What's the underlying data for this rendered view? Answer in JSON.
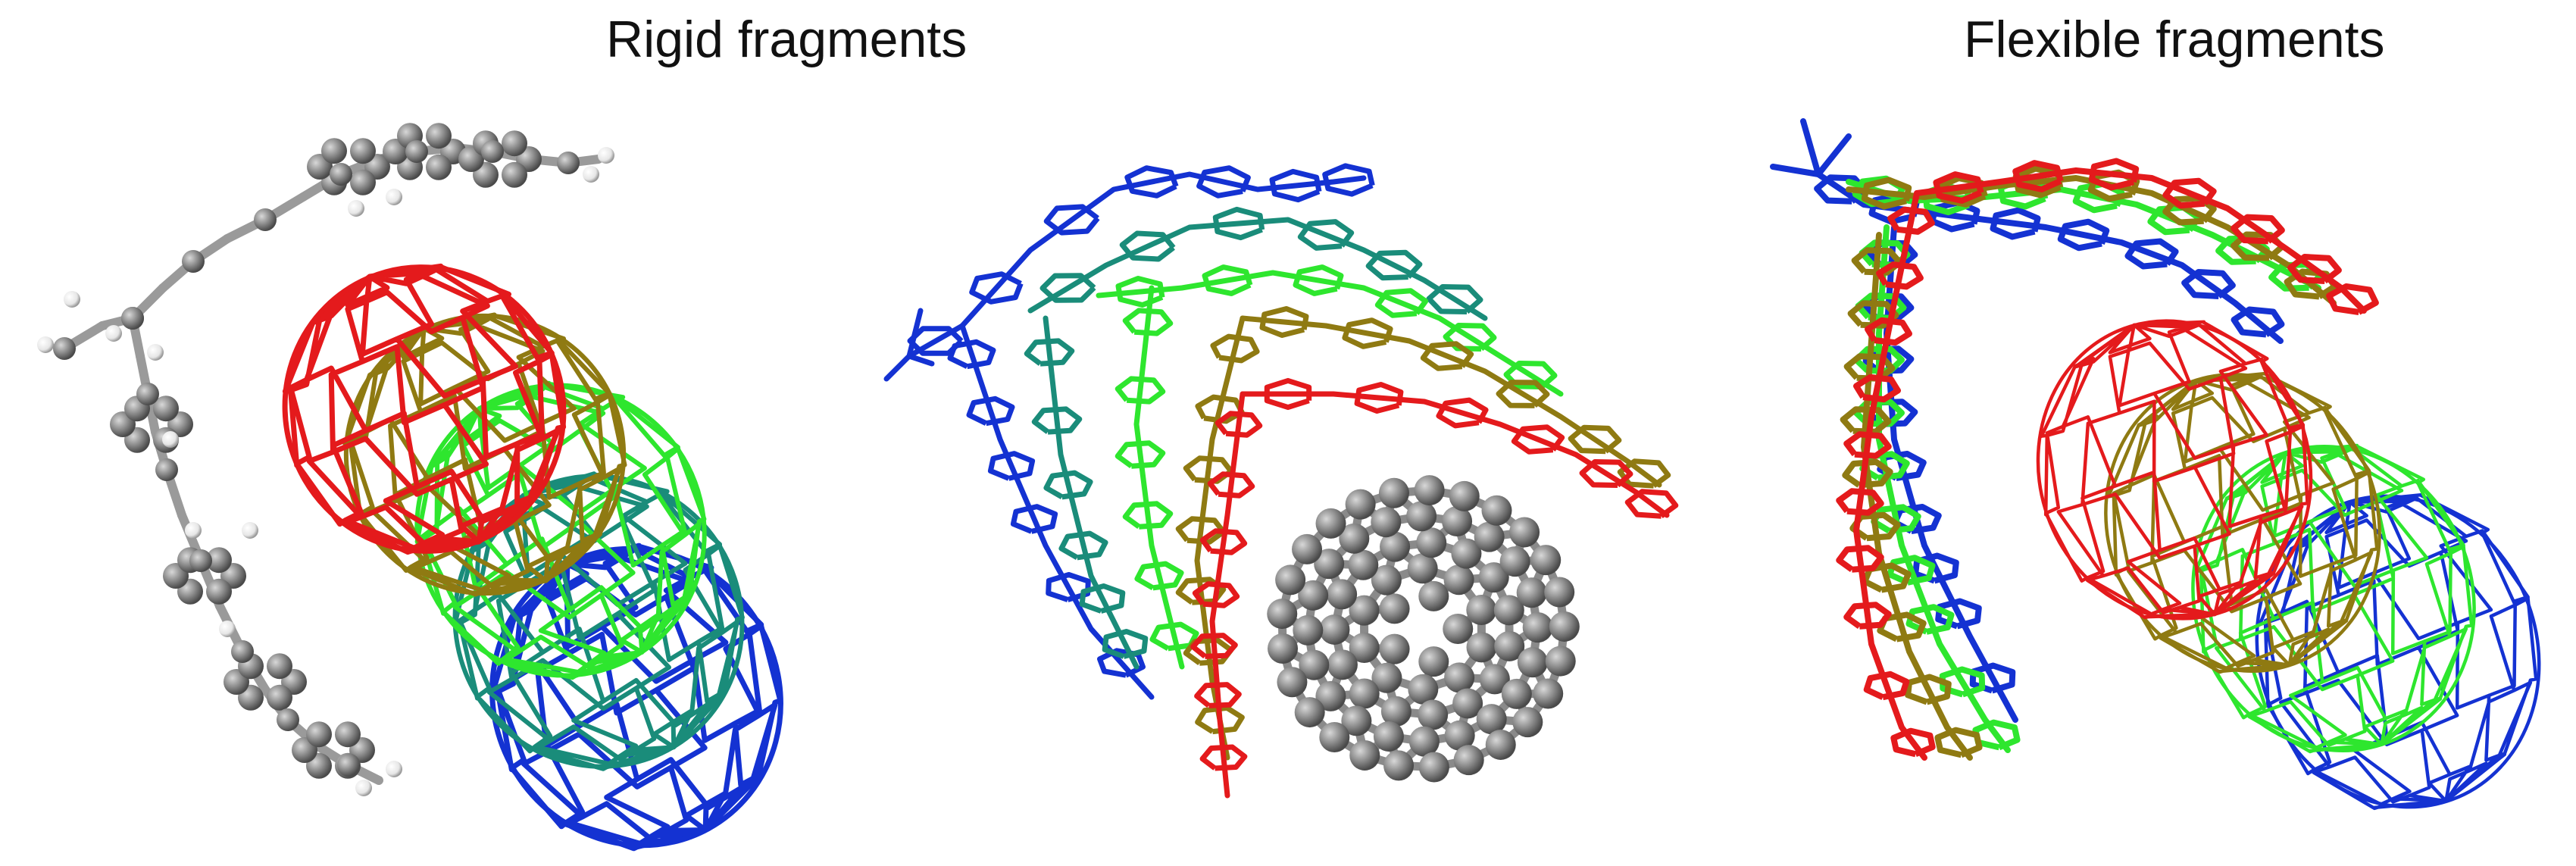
{
  "figure": {
    "rigid_title": "Rigid fragments",
    "flexible_title": "Flexible fragments"
  },
  "colors": {
    "red": "#e41a1c",
    "olive": "#8f7a12",
    "green": "#2ee62e",
    "teal": "#1a8c7a",
    "blue": "#1432d2",
    "atom_gray": "#8a8a8a",
    "hydrogen": "#f2f2f2",
    "background": "#ffffff"
  },
  "panels": [
    {
      "name": "rigid-overlay-panel",
      "content": "ball-and-stick molecule beside overlaid wireframe fullerenes"
    },
    {
      "name": "rigid-conformer-panel",
      "content": "overlaid conformers with ball-and-stick fullerene"
    },
    {
      "name": "flexible-overlay-panel",
      "content": "overlaid flexible conformers with wireframe fullerenes"
    }
  ]
}
